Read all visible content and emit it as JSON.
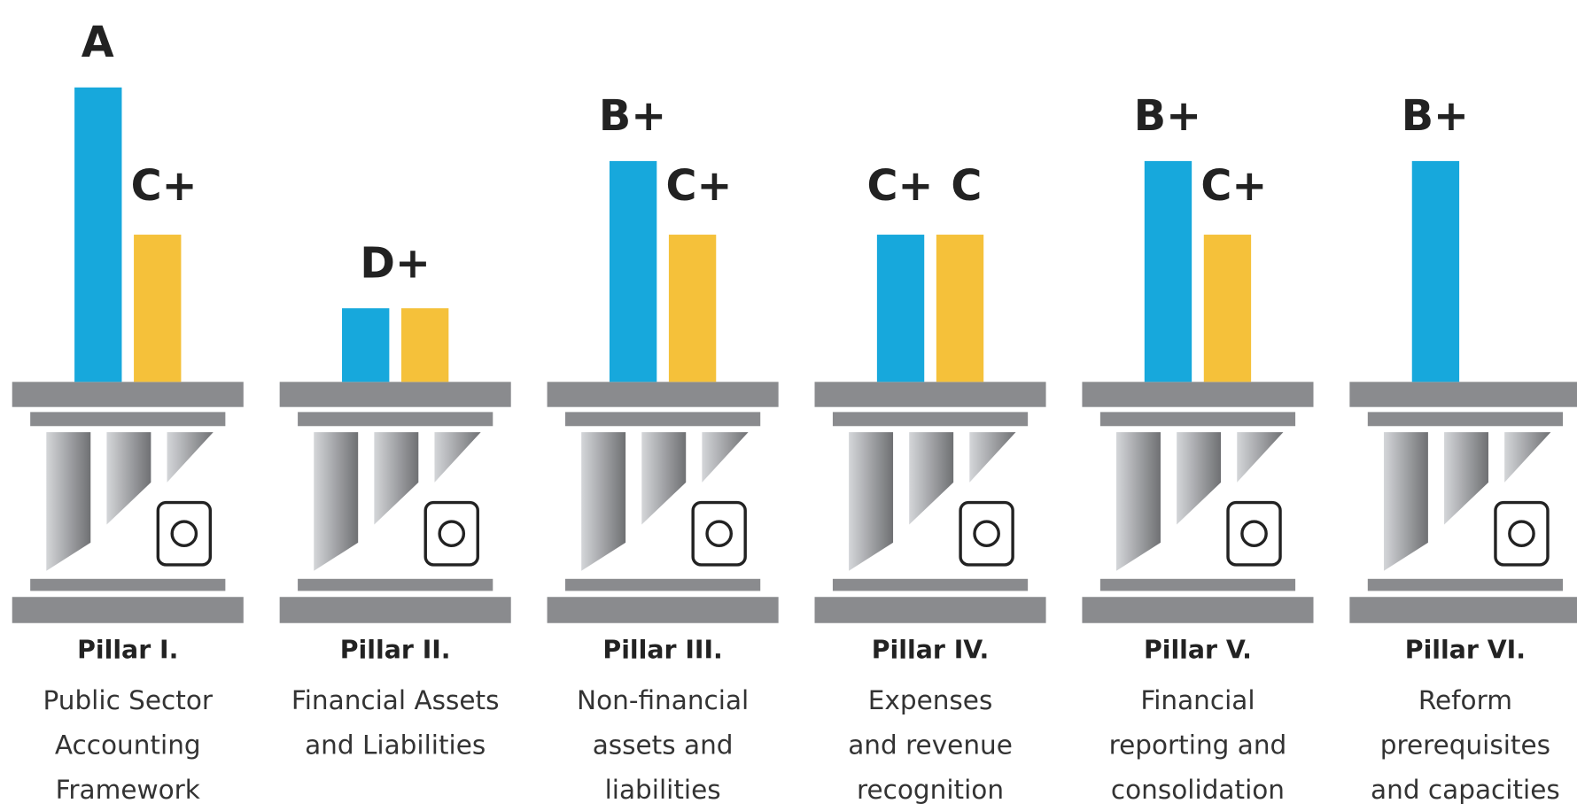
{
  "chart_data": {
    "type": "bar",
    "categories": [
      "Pillar I.",
      "Pillar II.",
      "Pillar III.",
      "Pillar IV.",
      "Pillar V.",
      "Pillar VI."
    ],
    "descriptions": [
      [
        "Public Sector",
        "Accounting",
        "Framework"
      ],
      [
        "Financial Assets",
        "and Liabilities"
      ],
      [
        "Non-financial",
        "assets and",
        "liabilities"
      ],
      [
        "Expenses",
        "and revenue",
        "recognition"
      ],
      [
        "Financial",
        "reporting and",
        "consolidation"
      ],
      [
        "Reform",
        "prerequisites",
        "and capacities"
      ]
    ],
    "series": [
      {
        "color": "#17a8dc",
        "values": [
          4,
          1,
          3,
          2,
          3,
          3
        ],
        "value_labels": [
          "A",
          "D+",
          "B+",
          "C+",
          "B+",
          "B+"
        ]
      },
      {
        "color": "#f5c13a",
        "values": [
          2,
          1,
          2,
          2,
          2,
          null
        ],
        "value_labels": [
          "C+",
          null,
          "C+",
          "C",
          "C+",
          null
        ]
      }
    ],
    "ylim": [
      0,
      4
    ]
  }
}
